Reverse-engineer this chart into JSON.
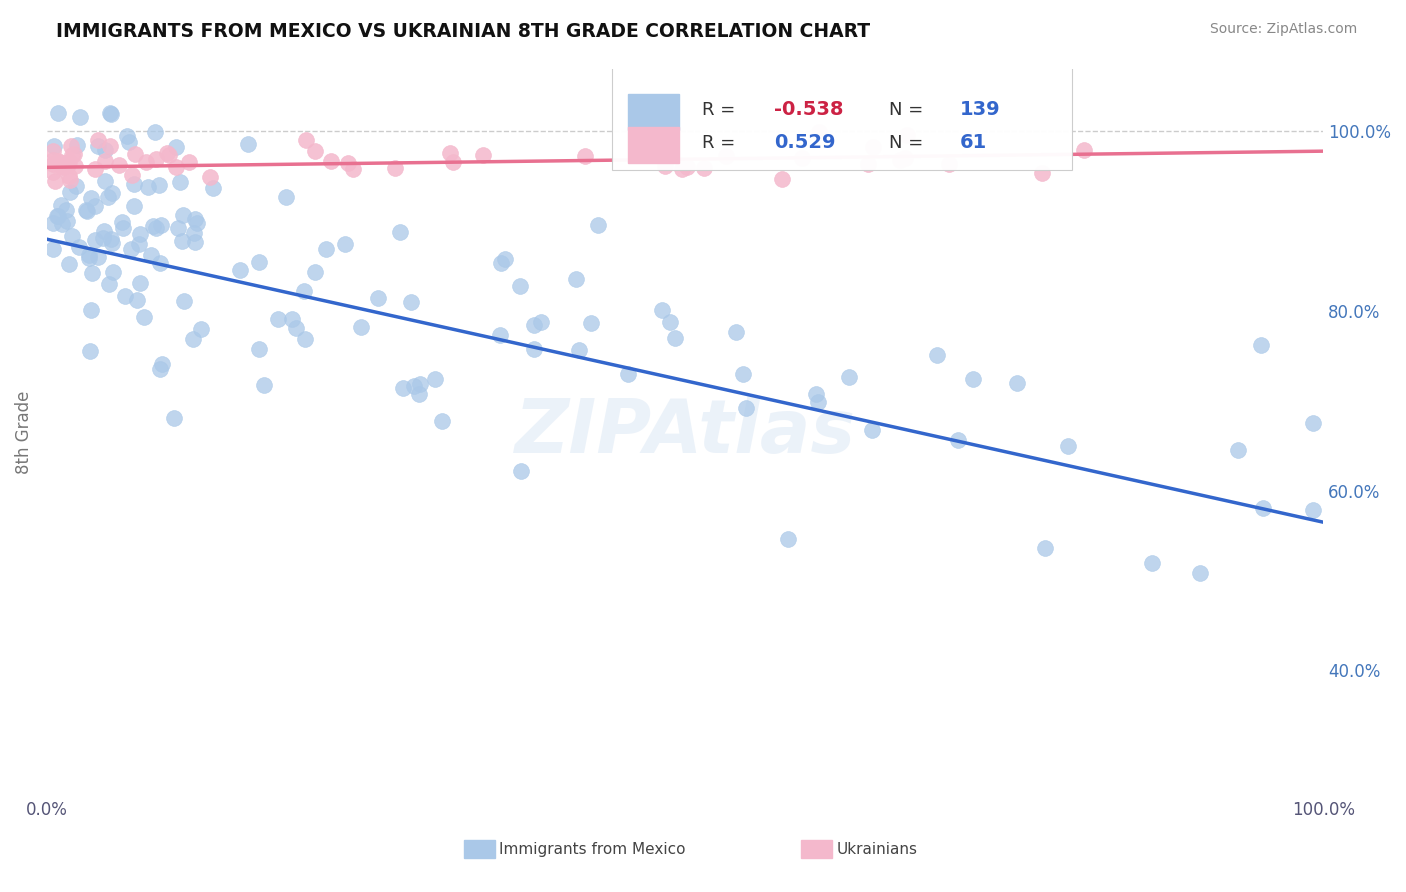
{
  "title": "IMMIGRANTS FROM MEXICO VS UKRAINIAN 8TH GRADE CORRELATION CHART",
  "source": "Source: ZipAtlas.com",
  "ylabel": "8th Grade",
  "xlim": [
    0.0,
    1.0
  ],
  "ylim": [
    0.26,
    1.07
  ],
  "ytick_labels": [
    "40.0%",
    "60.0%",
    "80.0%",
    "100.0%"
  ],
  "ytick_values": [
    0.4,
    0.6,
    0.8,
    1.0
  ],
  "xtick_labels": [
    "0.0%",
    "100.0%"
  ],
  "xtick_values": [
    0.0,
    1.0
  ],
  "legend_labels": [
    "Immigrants from Mexico",
    "Ukrainians"
  ],
  "blue_R": "-0.538",
  "blue_N": "139",
  "pink_R": "0.529",
  "pink_N": "61",
  "blue_color": "#aac8e8",
  "pink_color": "#f4b8cc",
  "blue_line_color": "#3366cc",
  "pink_line_color": "#e87090",
  "blue_line_y_start": 0.88,
  "blue_line_y_end": 0.565,
  "pink_line_y_start": 0.96,
  "pink_line_y_end": 0.978,
  "watermark": "ZIPAtlas",
  "dashed_line_y": 1.0
}
